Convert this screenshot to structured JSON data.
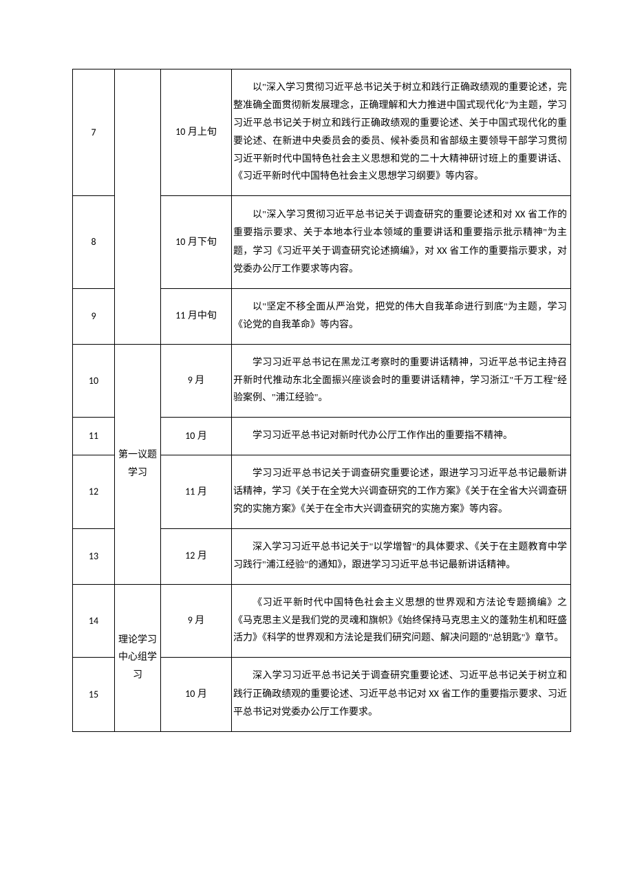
{
  "rows": [
    {
      "num": "7",
      "time_num": "10",
      "time_suffix": " 月上旬",
      "content_html": "以\"深入学习贯彻习近平总书记关于树立和践行正确政绩观的重要论述，完整准确全面贯彻新发展理念，正确理解和大力推进中国式现代化\"为主题，学习习近平总书记关于树立和践行正确政绩观的重要论述、关于中国式现代化的重要论述、在新进中央委员会的委员、候补委员和省部级主要领导干部学习贯彻习近平新时代中国特色社会主义思想和党的二十大精神研讨班上的重要讲话、《习近平新时代中国特色社会主义思想学习纲要》等内容。"
    },
    {
      "num": "8",
      "time_num": "10",
      "time_suffix": " 月下旬",
      "content_html": "以\"深入学习贯彻习近平总书记关于调查研究的重要论述和对 <span class=\"xx\">XX</span> 省工作的重要指示要求、关于本地本行业本领域的重要讲话和重要指示批示精神\"为主题，学习《习近平关于调查研究论述摘编》，对 <span class=\"xx\">XX</span> 省工作的重要指示要求，对党委办公厅工作要求等内容。"
    },
    {
      "num": "9",
      "time_num": "11",
      "time_suffix": " 月中旬",
      "content_html": "以\"坚定不移全面从严治党，把党的伟大自我革命进行到底\"为主题，学习《论党的自我革命》等内容。"
    },
    {
      "num": "10",
      "time_num": "9",
      "time_suffix": " 月",
      "content_html": "学习习近平总书记在黑龙江考察时的重要讲话精神，习近平总书记主持召开新时代推动东北全面振兴座谈会时的重要讲话精神，学习浙江\"千万工程\"经验案例、\"浦江经验\"。"
    },
    {
      "num": "11",
      "time_num": "10",
      "time_suffix": " 月",
      "content_html": "学习习近平总书记对新时代办公厅工作作出的重要指不精神。"
    },
    {
      "num": "12",
      "time_num": "11",
      "time_suffix": " 月",
      "content_html": "学习习近平总书记关于调查研究重要论述，跟进学习习近平总书记最新讲话精神，学习《关于在全党大兴调查研究的工作方案》《关于在全省大兴调查研究的实施方案》《关于在全市大兴调查研究的实施方案》等内容。"
    },
    {
      "num": "13",
      "time_num": "12",
      "time_suffix": " 月",
      "content_html": "深入学习习近平总书记关于\"以学增智\"的具体要求、《关于在主题教育中学习践行\"浦江经验\"的通知》，跟进学习习近平总书记最新讲话精神。"
    },
    {
      "num": "14",
      "time_num": "9",
      "time_suffix": " 月",
      "content_html": "《习近平新时代中国特色社会主义思想的世界观和方法论专题摘编》之《马克思主义是我们党的灵魂和旗帜》《始终保持马克思主义的蓬勃生机和旺盛活力》《科学的世界观和方法论是我们研究问题、解决问题的\"总钥匙\"》章节。"
    },
    {
      "num": "15",
      "time_num": "10",
      "time_suffix": " 月",
      "content_html": "深入学习习近平总书记关于调查研究重要论述、习近平总书记关于树立和践行正确政绩观的重要论述、习近平总书记对 <span class=\"xx\">XX</span> 省工作的重要指示要求、习近平总书记对党委办公厅工作要求。"
    }
  ],
  "categories": {
    "cat1": "第一议题学习",
    "cat2": "理论学习中心组学习"
  }
}
